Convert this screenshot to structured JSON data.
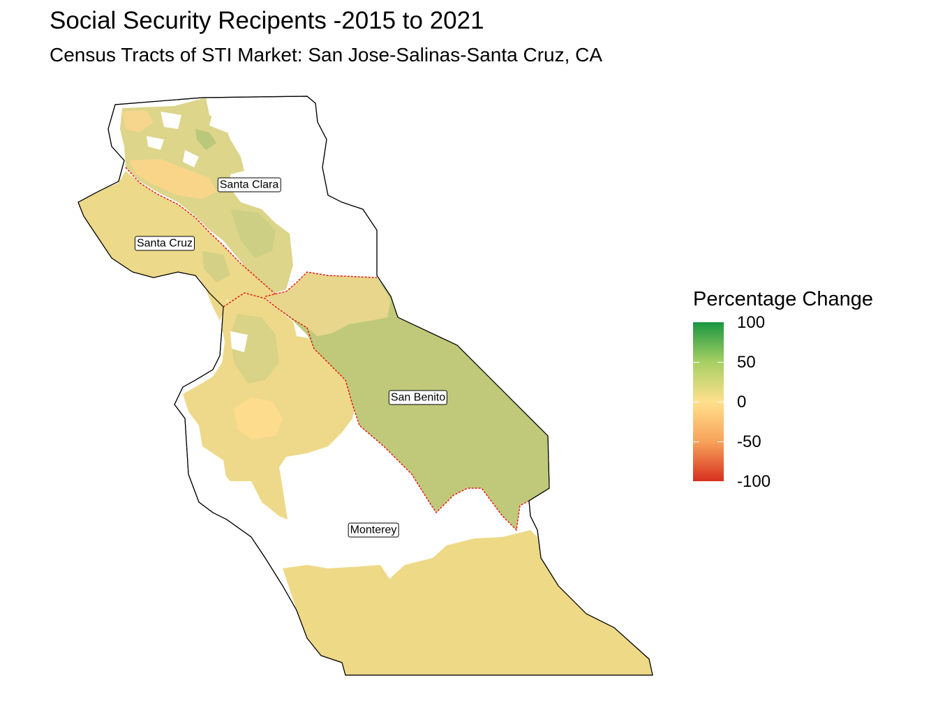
{
  "title": "Social Security Recipents -2015 to 2021",
  "subtitle": "Census Tracts of STI Market: San Jose-Salinas-Santa Cruz, CA",
  "legend": {
    "title": "Percentage Change",
    "ticks": [
      "100",
      "50",
      "0",
      "-50",
      "-100"
    ],
    "colors": {
      "high": "#1a9641",
      "mid": "#ffe08c",
      "low": "#d7301f"
    }
  },
  "counties": [
    {
      "name": "Santa Clara",
      "fill_color": "#dcd58a"
    },
    {
      "name": "Santa Cruz",
      "fill_color": "#ecd98a"
    },
    {
      "name": "San Benito",
      "fill_color": "#c0c97a"
    },
    {
      "name": "Monterey",
      "fill_color": "#eed987"
    }
  ],
  "colors": {
    "county_border": "#e8100e",
    "outline": "#000000",
    "tract_light": "#f5da8b",
    "tract_green": "#b9c87a"
  }
}
